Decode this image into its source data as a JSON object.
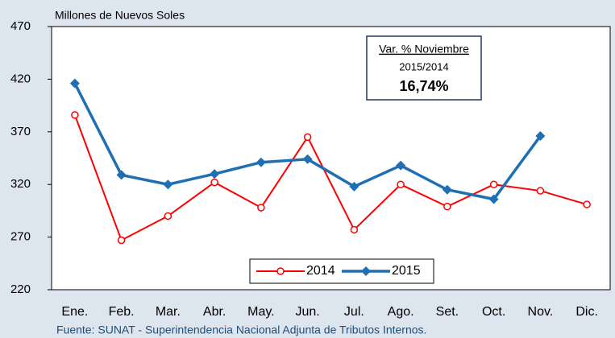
{
  "chart_data": {
    "type": "line",
    "title": "Millones de Nuevos Soles",
    "source": "Fuente: SUNAT - Superintendencia  Nacional Adjunta de Tributos  Internos.",
    "annotation": [
      "Var. % Noviembre",
      "2015/2014",
      "16,74%"
    ],
    "categories": [
      "Ene.",
      "Feb.",
      "Mar.",
      "Abr.",
      "May.",
      "Jun.",
      "Jul.",
      "Ago.",
      "Set.",
      "Oct.",
      "Nov.",
      "Dic."
    ],
    "series": [
      {
        "name": "2014",
        "color": "#ff0000",
        "marker": "circle",
        "values": [
          386,
          267,
          290,
          322,
          298,
          365,
          277,
          320,
          299,
          320,
          314,
          301
        ]
      },
      {
        "name": "2015",
        "color": "#1f6fb2",
        "marker": "diamond",
        "values": [
          416,
          329,
          320,
          330,
          341,
          344,
          318,
          338,
          315,
          306,
          366,
          null
        ]
      }
    ],
    "ylim": [
      220,
      470
    ],
    "yticks": [
      220,
      270,
      320,
      370,
      420,
      470
    ],
    "legend": "bottom"
  }
}
